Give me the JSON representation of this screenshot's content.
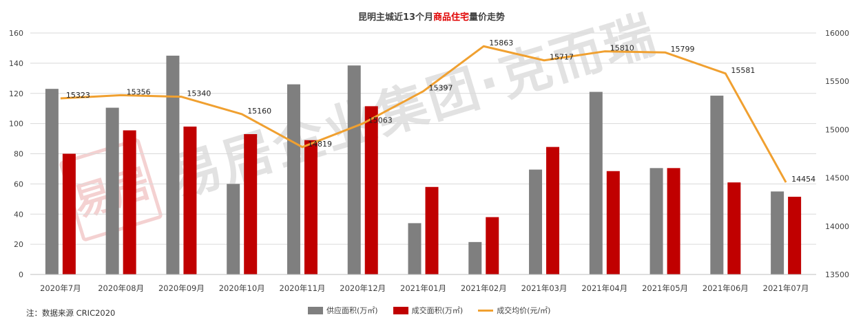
{
  "header": {
    "title_pre": "昆明主城近13个月",
    "title_highlight": "商品住宅",
    "title_post": "量价走势"
  },
  "footer": {
    "note": "注：数据来源 CRIC2020"
  },
  "watermark": {
    "text": "易居企业集团·克而瑞",
    "seal_text": "易居"
  },
  "legend": {
    "supply_label": "供应面积(万㎡)",
    "deal_label": "成交面积(万㎡)",
    "price_label": "成交均价(元/㎡)"
  },
  "colors": {
    "supply": "#7f7f7f",
    "deal": "#c00000",
    "price": "#f0a030",
    "grid": "#d9d9d9",
    "text": "#404040"
  },
  "chart_data": {
    "type": "bar",
    "title": "昆明主城近13个月商品住宅量价走势",
    "categories": [
      "2020年7月",
      "2020年08月",
      "2020年09月",
      "2020年10月",
      "2020年11月",
      "2020年12月",
      "2021年01月",
      "2021年02月",
      "2021年03月",
      "2021年04月",
      "2021年05月",
      "2021年06月",
      "2021年07月"
    ],
    "series": [
      {
        "name": "供应面积(万㎡)",
        "type": "bar",
        "axis": "left",
        "values": [
          123,
          110.5,
          145,
          60,
          126,
          138.5,
          34,
          21.5,
          69.5,
          121,
          70.5,
          118.5,
          55
        ]
      },
      {
        "name": "成交面积(万㎡)",
        "type": "bar",
        "axis": "left",
        "values": [
          80,
          95.5,
          98,
          93,
          89,
          111.5,
          58,
          38,
          84.5,
          68.5,
          70.5,
          61,
          51.5
        ]
      },
      {
        "name": "成交均价(元/㎡)",
        "type": "line",
        "axis": "right",
        "values": [
          15323,
          15356,
          15340,
          15160,
          14819,
          15063,
          15397,
          15863,
          15717,
          15810,
          15799,
          15581,
          14454
        ]
      }
    ],
    "ylim": [
      0,
      160
    ],
    "yticks": [
      0,
      20,
      40,
      60,
      80,
      100,
      120,
      140,
      160
    ],
    "y2lim": [
      13500,
      16000
    ],
    "y2ticks": [
      13500,
      14000,
      14500,
      15000,
      15500,
      16000
    ],
    "grid": true,
    "legend_position": "bottom"
  }
}
